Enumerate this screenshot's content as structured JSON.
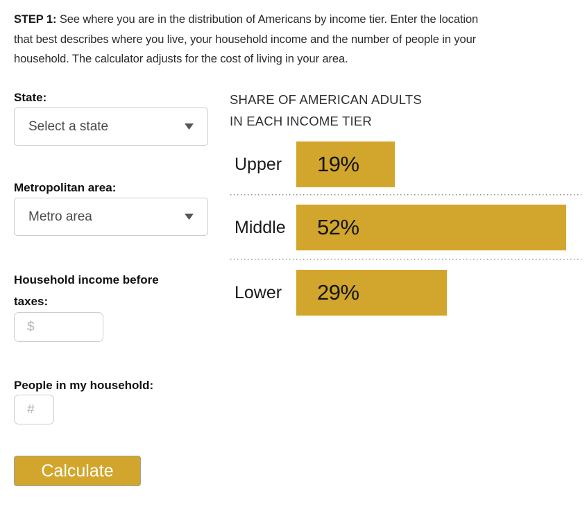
{
  "intro": {
    "step_label": "STEP 1:",
    "line1": " See where you are in the distribution of Americans by income tier. Enter the location",
    "line2": "that best describes where you live, your household income and the number of people in your",
    "line3": "household. The calculator adjusts for the cost of living in your area."
  },
  "form": {
    "state": {
      "label": "State:",
      "value": "Select a state"
    },
    "metro": {
      "label": "Metropolitan area:",
      "value": "Metro area"
    },
    "income": {
      "label": "Household income before taxes:",
      "placeholder": "$"
    },
    "household": {
      "label": "People in my household:",
      "placeholder": "#"
    },
    "calculate_label": "Calculate"
  },
  "chart_data": {
    "type": "bar",
    "orientation": "horizontal",
    "title": "SHARE OF AMERICAN ADULTS IN EACH INCOME TIER",
    "title_lines": [
      "SHARE OF AMERICAN ADULTS",
      "IN EACH INCOME TIER"
    ],
    "categories": [
      "Upper",
      "Middle",
      "Lower"
    ],
    "values": [
      19,
      52,
      29
    ],
    "value_labels": [
      "19%",
      "52%",
      "29%"
    ],
    "unit": "%",
    "xlim": [
      0,
      52
    ],
    "grid": false,
    "legend": "none",
    "bar_color": "#d2a62c",
    "separator_style": "dotted"
  },
  "colors": {
    "accent_gold": "#d2a62c",
    "button_text": "#ffffff",
    "input_border": "#cccccc",
    "text_dark": "#2a2a2a"
  }
}
